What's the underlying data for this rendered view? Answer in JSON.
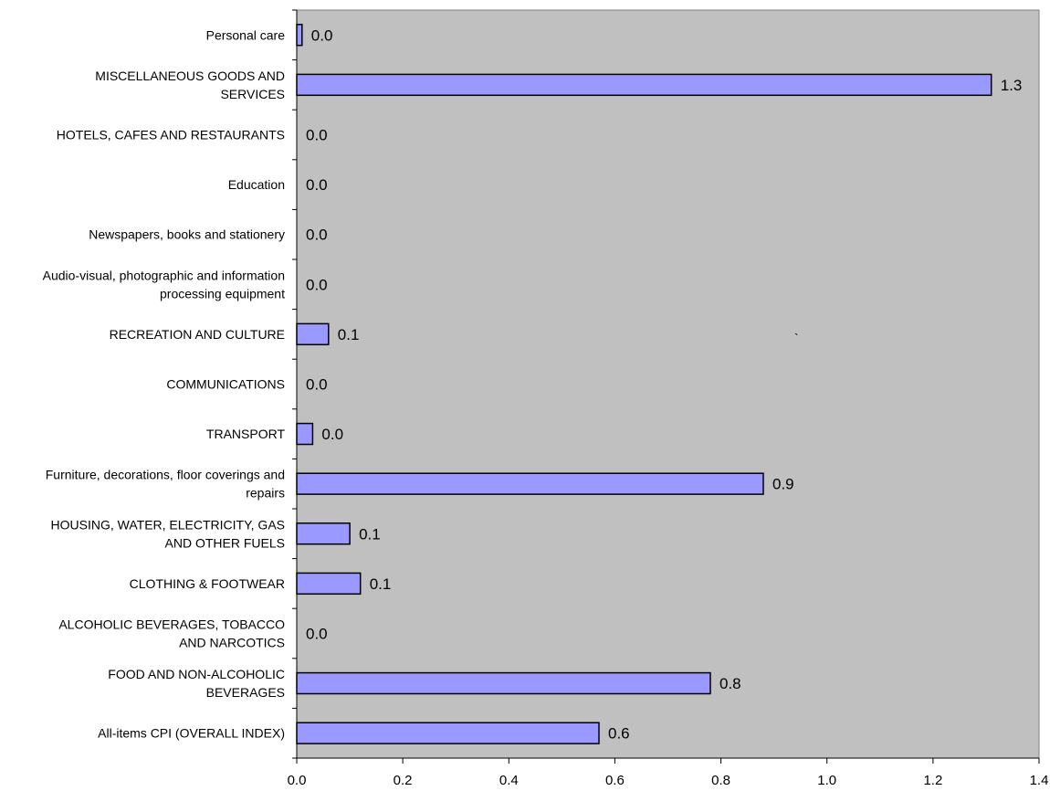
{
  "chart_data": {
    "type": "bar",
    "orientation": "horizontal",
    "categories": [
      "Personal care",
      "MISCELLANEOUS GOODS AND SERVICES",
      "HOTELS, CAFES AND RESTAURANTS",
      "Education",
      "Newspapers, books and stationery",
      "Audio-visual, photographic and information processing equipment",
      "RECREATION AND CULTURE",
      "COMMUNICATIONS",
      "TRANSPORT",
      "Furniture, decorations, floor coverings and repairs",
      "HOUSING, WATER, ELECTRICITY, GAS AND OTHER FUELS",
      "CLOTHING & FOOTWEAR",
      "ALCOHOLIC BEVERAGES, TOBACCO AND NARCOTICS",
      "FOOD AND NON-ALCOHOLIC BEVERAGES",
      "All-items CPI (OVERALL INDEX)"
    ],
    "category_lines": [
      [
        "Personal care"
      ],
      [
        "MISCELLANEOUS GOODS AND",
        "SERVICES"
      ],
      [
        "HOTELS, CAFES AND RESTAURANTS"
      ],
      [
        "Education"
      ],
      [
        "Newspapers, books and stationery"
      ],
      [
        "Audio-visual, photographic and information",
        "processing equipment"
      ],
      [
        "RECREATION AND CULTURE"
      ],
      [
        "COMMUNICATIONS"
      ],
      [
        "TRANSPORT"
      ],
      [
        "Furniture, decorations, floor coverings and",
        "repairs"
      ],
      [
        "HOUSING, WATER, ELECTRICITY, GAS",
        "AND OTHER FUELS"
      ],
      [
        "CLOTHING & FOOTWEAR"
      ],
      [
        "ALCOHOLIC BEVERAGES, TOBACCO",
        "AND NARCOTICS"
      ],
      [
        "FOOD AND NON-ALCOHOLIC",
        "BEVERAGES"
      ],
      [
        "All-items CPI (OVERALL INDEX)"
      ]
    ],
    "values": [
      0.01,
      1.31,
      0.0,
      0.0,
      0.0,
      0.0,
      0.06,
      0.0,
      0.03,
      0.88,
      0.1,
      0.12,
      0.0,
      0.78,
      0.57
    ],
    "data_labels": [
      "0.0",
      "1.3",
      "0.0",
      "0.0",
      "0.0",
      "0.0",
      "0.1",
      "0.0",
      "0.0",
      "0.9",
      "0.1",
      "0.1",
      "0.0",
      "0.8",
      "0.6"
    ],
    "xlim": [
      0,
      1.4
    ],
    "xticks": [
      0,
      0.2,
      0.4,
      0.6,
      0.8,
      1.0,
      1.2,
      1.4
    ],
    "xtick_labels": [
      "0.0",
      "0.2",
      "0.4",
      "0.6",
      "0.8",
      "1.0",
      "1.2",
      "1.4"
    ],
    "title": "",
    "xlabel": "",
    "ylabel": "",
    "grid": false,
    "legend": "none",
    "stray_mark": "`",
    "colors": {
      "bar_fill": "#9999ff",
      "bar_stroke": "#000000",
      "plot_background": "#c0c0c0",
      "page_background": "#ffffff"
    }
  }
}
